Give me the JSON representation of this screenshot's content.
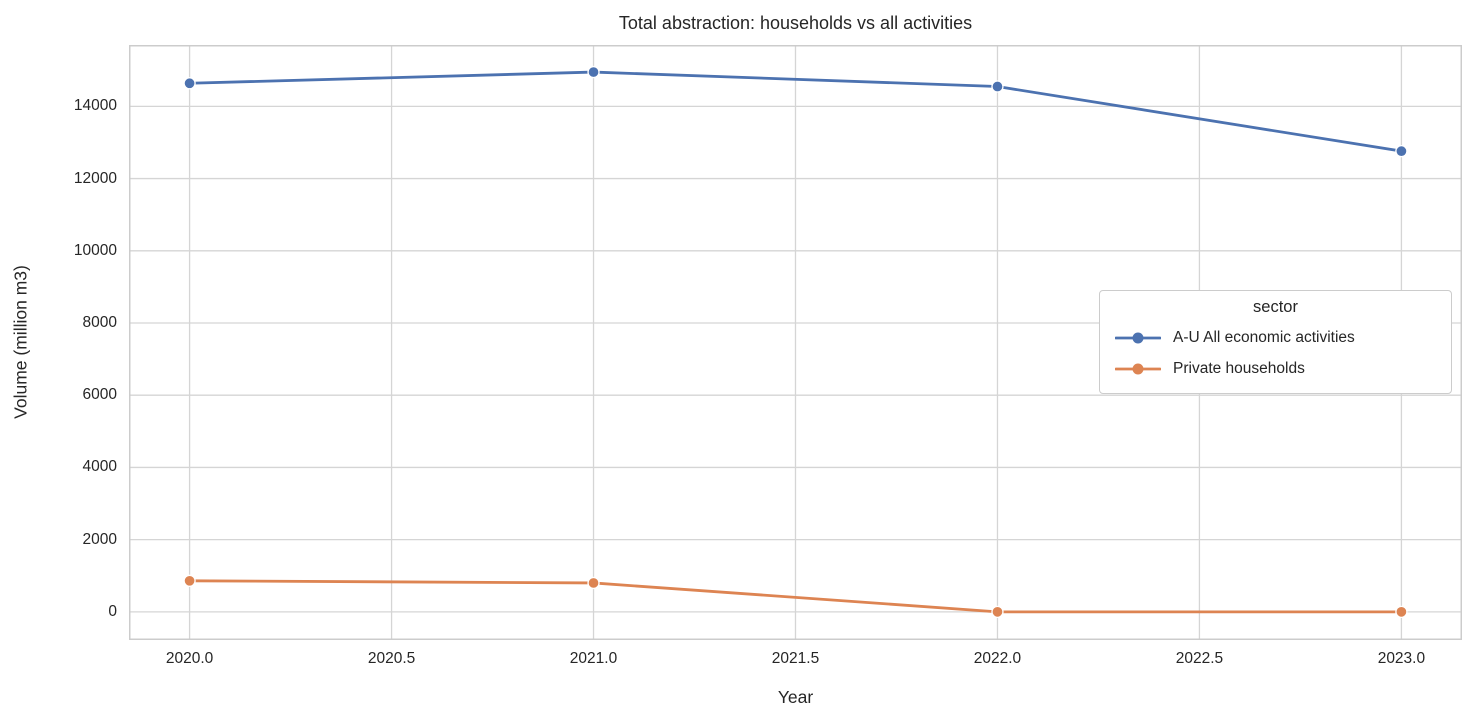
{
  "title": "Total abstraction: households vs all activities",
  "axes": {
    "x_label": "Year",
    "y_label": "Volume (million m3)"
  },
  "legend": {
    "title": "sector",
    "entries": [
      {
        "label": "A-U All economic activities",
        "color": "#4C72B0"
      },
      {
        "label": "Private households",
        "color": "#DD8452"
      }
    ]
  },
  "chart_data": {
    "type": "line",
    "title": "Total abstraction: households vs all activities",
    "xlabel": "Year",
    "ylabel": "Volume (million m3)",
    "x": [
      2020,
      2021,
      2022,
      2023
    ],
    "series": [
      {
        "name": "A-U All economic activities",
        "color": "#4C72B0",
        "values": [
          14640,
          14950,
          14550,
          12760
        ]
      },
      {
        "name": "Private households",
        "color": "#DD8452",
        "values": [
          860,
          800,
          0,
          0
        ]
      }
    ],
    "xlim": [
      2019.85,
      2023.15
    ],
    "ylim": [
      -780,
      15700
    ],
    "x_ticks": {
      "values": [
        2020.0,
        2020.5,
        2021.0,
        2021.5,
        2022.0,
        2022.5,
        2023.0
      ],
      "labels": [
        "2020.0",
        "2020.5",
        "2021.0",
        "2021.5",
        "2022.0",
        "2022.5",
        "2023.0"
      ]
    },
    "y_ticks": {
      "values": [
        0,
        2000,
        4000,
        6000,
        8000,
        10000,
        12000,
        14000
      ],
      "labels": [
        "0",
        "2000",
        "4000",
        "6000",
        "8000",
        "10000",
        "12000",
        "14000"
      ]
    },
    "grid": true,
    "legend_position": "center right (inside axes)"
  },
  "colors": {
    "grid": "#d5d5d5",
    "spine": "#cccccc",
    "text": "#262626",
    "background": "#ffffff"
  }
}
